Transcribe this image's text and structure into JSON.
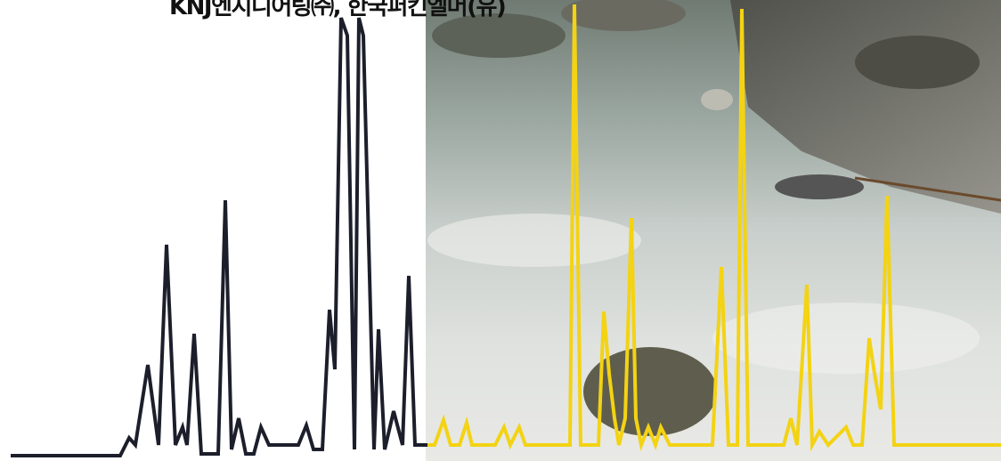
{
  "header": {
    "title": "KNJ엔지니어링㈜, 한국퍼킨엘머(유)"
  }
}
